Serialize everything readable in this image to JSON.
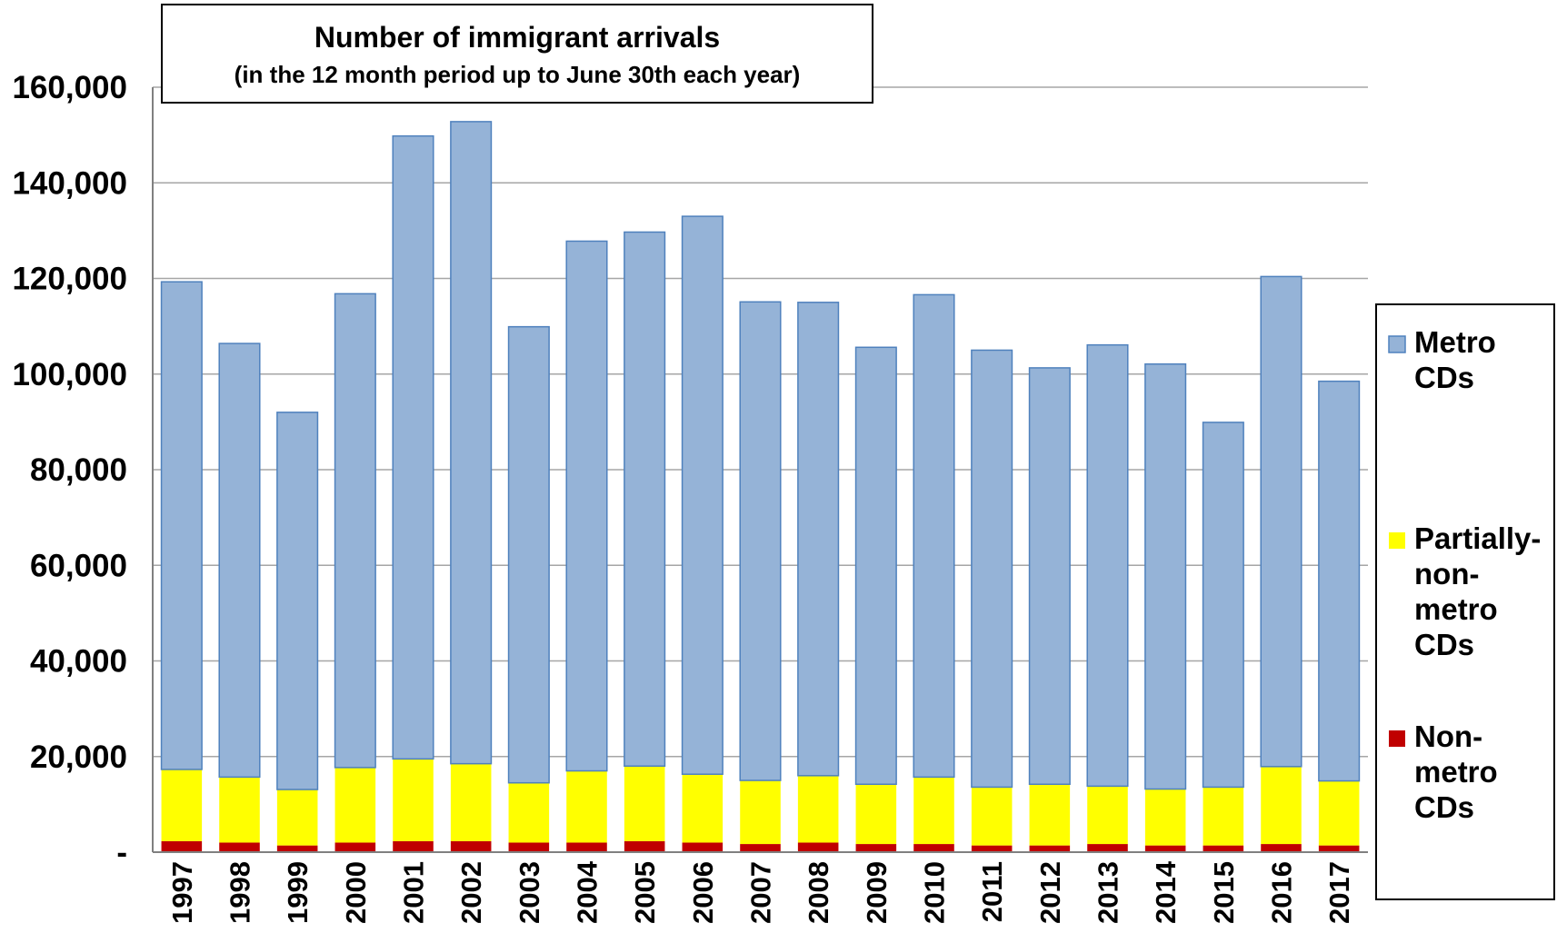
{
  "chart_data": {
    "type": "bar",
    "stacked": true,
    "title": "Number of immigrant arrivals",
    "subtitle": "(in the 12 month period up to June 30th each year)",
    "categories": [
      "1997",
      "1998",
      "1999",
      "2000",
      "2001",
      "2002",
      "2003",
      "2004",
      "2005",
      "2006",
      "2007",
      "2008",
      "2009",
      "2010",
      "2011",
      "2012",
      "2013",
      "2014",
      "2015",
      "2016",
      "2017"
    ],
    "series": [
      {
        "name": "Non-metro CDs",
        "legend_lines": [
          "Non-",
          "metro",
          "CDs"
        ],
        "color": "#C00000",
        "values": [
          2300,
          2000,
          1400,
          2000,
          2300,
          2300,
          2000,
          2000,
          2300,
          2000,
          1700,
          2000,
          1700,
          1700,
          1400,
          1400,
          1700,
          1400,
          1400,
          1700,
          1400
        ]
      },
      {
        "name": "Partially-non-metro CDs",
        "legend_lines": [
          "Partially-",
          "non-",
          "metro",
          "CDs"
        ],
        "color": "#FFFF00",
        "values": [
          15000,
          13700,
          11700,
          15700,
          17200,
          16200,
          12500,
          15000,
          15700,
          14300,
          13300,
          14000,
          12500,
          14000,
          12200,
          12800,
          12100,
          11800,
          12200,
          16200,
          13500
        ]
      },
      {
        "name": "Metro CDs",
        "legend_lines": [
          "Metro",
          "CDs"
        ],
        "color": "#95B3D7",
        "values": [
          102000,
          90700,
          78900,
          99100,
          130300,
          134300,
          95400,
          110800,
          111700,
          116700,
          100100,
          99000,
          91400,
          100900,
          91400,
          87100,
          92300,
          88900,
          76300,
          102500,
          83600
        ]
      }
    ],
    "y_ticks": [
      0,
      20000,
      40000,
      60000,
      80000,
      100000,
      120000,
      140000,
      160000
    ],
    "y_tick_labels": [
      "-",
      "20,000",
      "40,000",
      "60,000",
      "80,000",
      "100,000",
      "120,000",
      "140,000",
      "160,000"
    ],
    "ylim": [
      0,
      160000
    ],
    "grid": true,
    "legend_position": "right"
  }
}
